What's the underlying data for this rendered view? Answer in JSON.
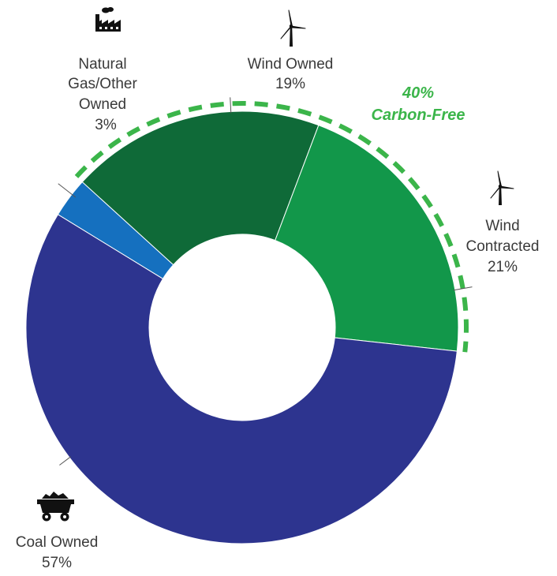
{
  "chart_data": {
    "type": "donut",
    "slices": [
      {
        "name": "Natural Gas/Other Owned",
        "label_lines": [
          "Natural",
          "Gas/Other",
          "Owned"
        ],
        "value": 3,
        "value_label": "3%",
        "color": "#1570bf",
        "icon": "factory-icon"
      },
      {
        "name": "Wind Owned",
        "label_lines": [
          "Wind Owned"
        ],
        "value": 19,
        "value_label": "19%",
        "color": "#0f6a38",
        "icon": "wind-turbine-icon"
      },
      {
        "name": "Wind Contracted",
        "label_lines": [
          "Wind",
          "Contracted"
        ],
        "value": 21,
        "value_label": "21%",
        "color": "#12974a",
        "icon": "wind-turbine-icon"
      },
      {
        "name": "Coal Owned",
        "label_lines": [
          "Coal Owned"
        ],
        "value": 57,
        "value_label": "57%",
        "color": "#2d348f",
        "icon": "coal-cart-icon"
      }
    ],
    "annotation": {
      "lines": [
        "40%",
        "Carbon-Free"
      ],
      "color": "#3bb54a",
      "spans": [
        "Wind Owned",
        "Wind Contracted"
      ]
    }
  }
}
